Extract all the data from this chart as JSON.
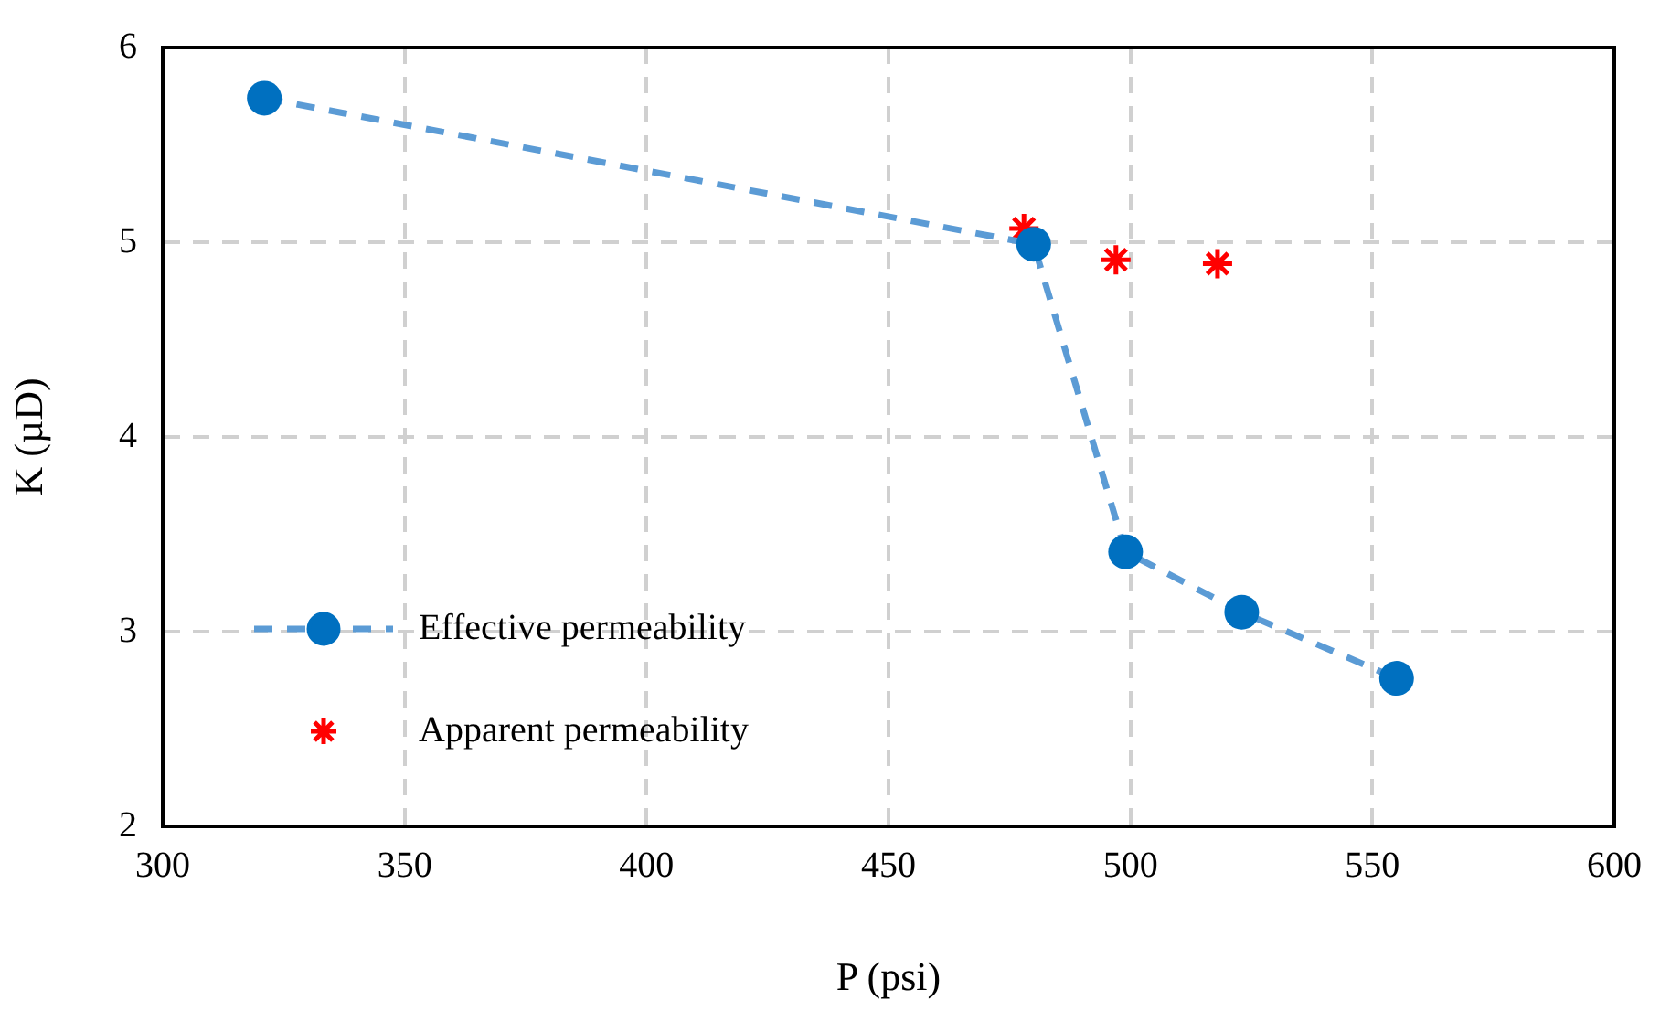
{
  "chart_data": {
    "type": "line",
    "xlabel": "P (psi)",
    "ylabel": "K (µD)",
    "xlim": [
      300,
      600
    ],
    "xticks": [
      300,
      350,
      400,
      450,
      500,
      550,
      600
    ],
    "ylim": [
      2,
      6
    ],
    "yticks": [
      2,
      3,
      4,
      5,
      6
    ],
    "grid": true,
    "legend": "bottom left",
    "series": [
      {
        "name": "Effective permeability",
        "color": "#0070c0",
        "marker": "circle",
        "line_style": "dashed",
        "x": [
          321,
          480,
          499,
          523,
          555
        ],
        "values": [
          5.74,
          4.99,
          3.41,
          3.1,
          2.76
        ]
      },
      {
        "name": "Apparent permeability",
        "type": "scatter",
        "color": "#ff0000",
        "marker": "cross",
        "x": [
          478,
          497,
          518
        ],
        "values": [
          5.07,
          4.91,
          4.89
        ]
      }
    ]
  }
}
